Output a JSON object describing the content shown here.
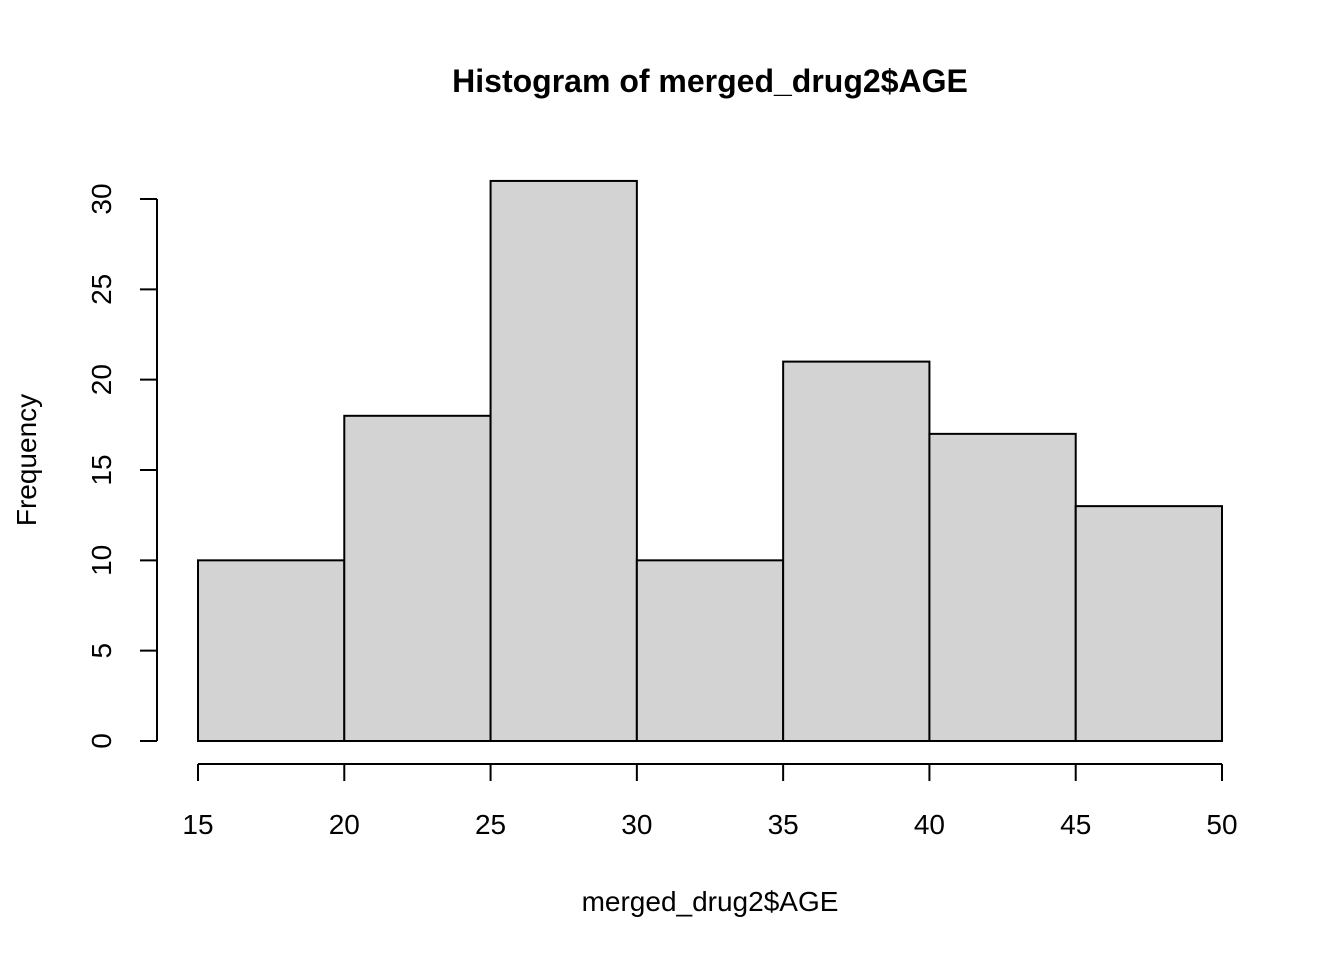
{
  "chart_data": {
    "type": "bar",
    "subtype": "histogram",
    "title": "Histogram of merged_drug2$AGE",
    "xlabel": "merged_drug2$AGE",
    "ylabel": "Frequency",
    "bins": [
      {
        "start": 15,
        "end": 20,
        "value": 10
      },
      {
        "start": 20,
        "end": 25,
        "value": 18
      },
      {
        "start": 25,
        "end": 30,
        "value": 31
      },
      {
        "start": 30,
        "end": 35,
        "value": 10
      },
      {
        "start": 35,
        "end": 40,
        "value": 21
      },
      {
        "start": 40,
        "end": 45,
        "value": 17
      },
      {
        "start": 45,
        "end": 50,
        "value": 13
      }
    ],
    "xlim": [
      15,
      50
    ],
    "ylim": [
      0,
      30
    ],
    "x_ticks": [
      "15",
      "20",
      "25",
      "30",
      "35",
      "40",
      "45",
      "50"
    ],
    "y_ticks": [
      "0",
      "5",
      "10",
      "15",
      "20",
      "25",
      "30"
    ],
    "bar_fill": "#d3d3d3",
    "bar_stroke": "#000000",
    "grid": false,
    "legend": "none"
  }
}
